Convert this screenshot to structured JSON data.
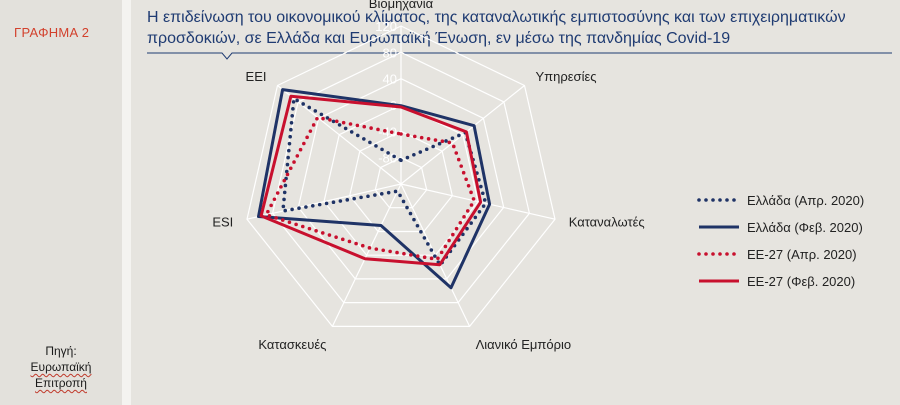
{
  "figure_label": "ΓΡΑΦΗΜΑ 2",
  "title": "Η επιδείνωση του οικονομικού κλίματος, της καταναλωτικής εμπιστοσύνης και των επιχειρηματικών προσδοκιών, σε Ελλάδα και Ευρωπαϊκή Ένωση, εν μέσω της πανδημίας Covid-19",
  "source": {
    "label": "Πηγή:",
    "line1": "Ευρωπαϊκή",
    "line2": "Επιτροπή"
  },
  "colors": {
    "greece": "#1f3366",
    "eu": "#c8102e",
    "grid": "#ffffff",
    "title": "#1f3b72",
    "figure_label": "#d2412d"
  },
  "chart_data": {
    "type": "radar",
    "axes": [
      "Βιομηχανία",
      "Υπηρεσίες",
      "Καταναλωτές",
      "Λιανικό Εμπόριο",
      "Κατασκευές",
      "ESI",
      "ΕΕΙ"
    ],
    "rlim": [
      -120,
      120
    ],
    "ticks": [
      120,
      80,
      40,
      0,
      -40,
      -80
    ],
    "grid": true,
    "legend_position": "right",
    "series": [
      {
        "name": "Ελλάδα (Απρ. 2020)",
        "color": "#1f3366",
        "style": "dotted",
        "values": [
          -84,
          5,
          12,
          17,
          -108,
          64,
          88
        ]
      },
      {
        "name": "Ελλάδα (Φεβ. 2020)",
        "color": "#1f3366",
        "style": "solid",
        "values": [
          -1,
          22,
          18,
          55,
          -50,
          102,
          110
        ]
      },
      {
        "name": "ΕΕ-27 (Απρ. 2020)",
        "color": "#c8102e",
        "style": "dotted",
        "values": [
          -44,
          -20,
          -6,
          7,
          -12,
          90,
          42
        ]
      },
      {
        "name": "ΕΕ-27 (Φεβ. 2020)",
        "color": "#c8102e",
        "style": "solid",
        "values": [
          -3,
          7,
          4,
          16,
          6,
          98,
          94
        ]
      }
    ]
  }
}
